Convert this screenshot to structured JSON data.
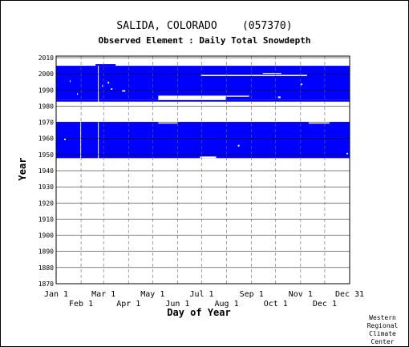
{
  "chart_data": {
    "type": "heatmap",
    "title": "SALIDA, COLORADO    (057370)",
    "subtitle": "Observed Element : Daily Total Snowdepth",
    "xlabel": "Day of Year",
    "ylabel": "Year",
    "xlim": [
      0,
      365
    ],
    "ylim": [
      1870,
      2011
    ],
    "x_ticks_top": [
      {
        "label": "Jan 1",
        "day": 0
      },
      {
        "label": "Mar 1",
        "day": 59
      },
      {
        "label": "May 1",
        "day": 120
      },
      {
        "label": "Jul 1",
        "day": 181
      },
      {
        "label": "Sep 1",
        "day": 243
      },
      {
        "label": "Nov 1",
        "day": 304
      },
      {
        "label": "Dec 31",
        "day": 365
      }
    ],
    "x_ticks_bottom": [
      {
        "label": "Feb 1",
        "day": 31
      },
      {
        "label": "Apr 1",
        "day": 90
      },
      {
        "label": "Jun 1",
        "day": 151
      },
      {
        "label": "Aug 1",
        "day": 212
      },
      {
        "label": "Oct 1",
        "day": 273
      },
      {
        "label": "Dec 1",
        "day": 334
      }
    ],
    "y_ticks": [
      1870,
      1880,
      1890,
      1900,
      1910,
      1920,
      1930,
      1940,
      1950,
      1960,
      1970,
      1980,
      1990,
      2000,
      2010
    ],
    "grid": true,
    "series": [
      {
        "color": "#0000ff",
        "periods": [
          {
            "x0": 0,
            "x1": 365,
            "y0": 1947.8,
            "y1": 1970.2
          },
          {
            "x0": 0,
            "x1": 365,
            "y0": 1983.8,
            "y1": 2005.0
          },
          {
            "x0": 49,
            "x1": 74,
            "y0": 2005.0,
            "y1": 2006.0
          },
          {
            "x0": 0,
            "x1": 127,
            "y0": 1982.8,
            "y1": 1983.8
          },
          {
            "x0": 127,
            "x1": 365,
            "y0": 1982.8,
            "y1": 1983.8
          }
        ],
        "gaps": [
          {
            "x0": 127,
            "x1": 211,
            "y0": 1983.8,
            "y1": 1986.5
          },
          {
            "x0": 211,
            "x1": 240,
            "y0": 1985.8,
            "y1": 1986.5
          },
          {
            "x0": 180,
            "x1": 312,
            "y0": 1998.6,
            "y1": 1999.4
          },
          {
            "x0": 257,
            "x1": 280,
            "y0": 1999.8,
            "y1": 2000.6
          },
          {
            "x0": 127,
            "x1": 151,
            "y0": 1969.2,
            "y1": 1970.2
          },
          {
            "x0": 314,
            "x1": 340,
            "y0": 1969.2,
            "y1": 1970.2
          },
          {
            "x0": 179,
            "x1": 199,
            "y0": 1947.8,
            "y1": 1948.8
          },
          {
            "x0": 30,
            "x1": 31,
            "y0": 1947.8,
            "y1": 1970.2
          },
          {
            "x0": 52,
            "x1": 53,
            "y0": 1947.8,
            "y1": 2005.0
          },
          {
            "x0": 17,
            "x1": 18,
            "y0": 1995.0,
            "y1": 1996.0
          },
          {
            "x0": 26,
            "x1": 27,
            "y0": 1987.0,
            "y1": 1988.0
          },
          {
            "x0": 57,
            "x1": 58,
            "y0": 1992.0,
            "y1": 1993.0
          },
          {
            "x0": 64,
            "x1": 66,
            "y0": 1994.0,
            "y1": 1995.0
          },
          {
            "x0": 68,
            "x1": 70,
            "y0": 1990.0,
            "y1": 1991.0
          },
          {
            "x0": 82,
            "x1": 86,
            "y0": 1989.0,
            "y1": 1990.0
          },
          {
            "x0": 226,
            "x1": 228,
            "y0": 1955.0,
            "y1": 1956.0
          },
          {
            "x0": 304,
            "x1": 306,
            "y0": 1993.0,
            "y1": 1994.0
          },
          {
            "x0": 276,
            "x1": 279,
            "y0": 1985.0,
            "y1": 1986.0
          },
          {
            "x0": 361,
            "x1": 363,
            "y0": 1950.0,
            "y1": 1951.0
          },
          {
            "x0": 10,
            "x1": 12,
            "y0": 1959.0,
            "y1": 1960.0
          }
        ]
      }
    ]
  },
  "credit": {
    "line1": "Western",
    "line2": "Regional",
    "line3": "Climate",
    "line4": "Center"
  }
}
